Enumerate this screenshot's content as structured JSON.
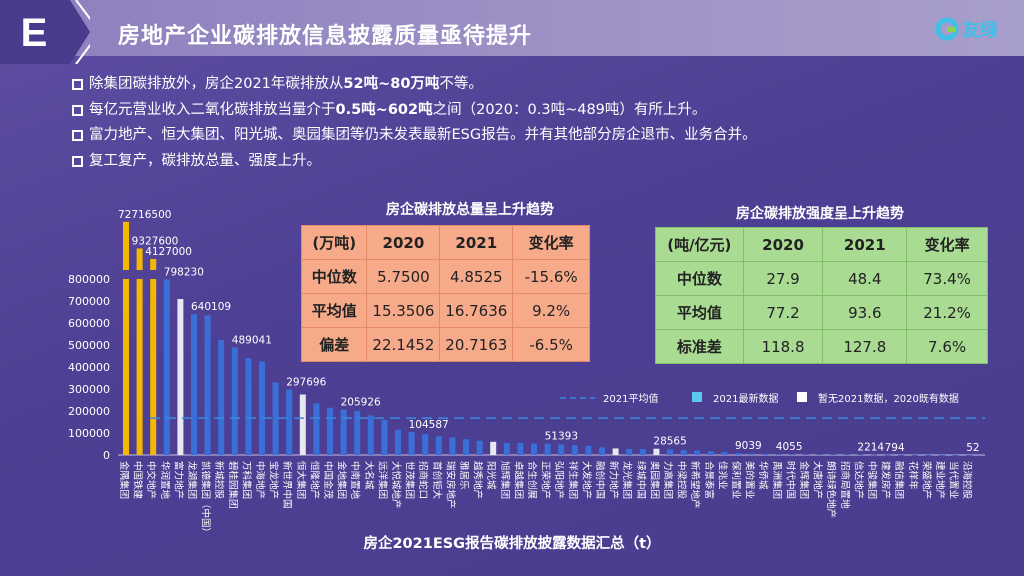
{
  "header": {
    "badge": "E",
    "title": "房地产企业碳排放信息披露质量亟待提升",
    "logo_text": "友绿"
  },
  "bullets": [
    {
      "pre": "除集团碳排放外，房企2021年碳排放从",
      "bold": "52吨~80万吨",
      "post": "不等。"
    },
    {
      "pre": "每亿元营业收入二氧化碳排放当量介于",
      "bold": "0.5吨~602吨",
      "post": "之间（2020：0.3吨~489吨）有所上升。"
    },
    {
      "pre": "富力地产、恒大集团、阳光城、奥园集团等仍未发表最新ESG报告。并有其他部分房企退市、业务合并。",
      "bold": "",
      "post": ""
    },
    {
      "pre": "复工复产，碳排放总量、强度上升。",
      "bold": "",
      "post": ""
    }
  ],
  "table_total": {
    "title": "房企碳排放总量呈上升趋势",
    "header": [
      "(万吨)",
      "2020",
      "2021",
      "变化率"
    ],
    "rows": [
      [
        "中位数",
        "5.7500",
        "4.8525",
        "-15.6%"
      ],
      [
        "平均值",
        "15.3506",
        "16.7636",
        "9.2%"
      ],
      [
        "偏差",
        "22.1452",
        "20.7163",
        "-6.5%"
      ]
    ]
  },
  "table_intensity": {
    "title": "房企碳排放强度呈上升趋势",
    "header": [
      "(吨/亿元)",
      "2020",
      "2021",
      "变化率"
    ],
    "rows": [
      [
        "中位数",
        "27.9",
        "48.4",
        "73.4%"
      ],
      [
        "平均值",
        "77.2",
        "93.6",
        "21.2%"
      ],
      [
        "标准差",
        "118.8",
        "127.8",
        "7.6%"
      ]
    ]
  },
  "chart_data": {
    "type": "bar",
    "title": "房企2021ESG报告碳排放披露数据汇总（t）",
    "ylim": [
      0,
      800000
    ],
    "yticks": [
      0,
      100000,
      200000,
      300000,
      400000,
      500000,
      600000,
      700000,
      800000
    ],
    "axis_break": true,
    "categories": [
      "金隅集团",
      "中国铁建",
      "中交地产",
      "华润置地",
      "富力地产",
      "龙湖集团",
      "凯德集团（中国）",
      "新城控股",
      "碧桂园集团",
      "万科集团",
      "中海地产",
      "宝龙地产",
      "新世界中国",
      "恒大集团",
      "恒隆地产",
      "中国金茂",
      "金地集团",
      "中南置地",
      "大名城",
      "远洋集团",
      "大悦城地产",
      "世茂集团",
      "招商蛇口",
      "首创钜大",
      "瑞安房地产",
      "雅居乐",
      "越秀地产",
      "阳光城",
      "旭辉集团",
      "卓越集团",
      "合生创展",
      "正荣地产",
      "弘阳地产",
      "祥生集团",
      "大发地产",
      "融创中国",
      "新力地产",
      "龙光集团",
      "绿城中国",
      "奥园集团",
      "力高集团",
      "中梁控股",
      "新希望地产",
      "合景泰富",
      "佳兆业",
      "保利置业",
      "美的置业",
      "华侨城",
      "禹洲集团",
      "时代中国",
      "金辉集团",
      "大唐地产",
      "朗诗绿色地产",
      "招商局置地",
      "信达地产",
      "中骏集团",
      "建发房产",
      "融信集团",
      "花样年",
      "荣盛地产",
      "建业地产",
      "当代置业",
      "沿海控股"
    ],
    "values": [
      72716500,
      9327600,
      4127000,
      798230,
      709000,
      640109,
      635000,
      523000,
      489041,
      440000,
      425000,
      330000,
      297696,
      275000,
      235000,
      215000,
      205926,
      200000,
      180000,
      160000,
      115000,
      104587,
      95000,
      85000,
      80000,
      72000,
      65000,
      60000,
      55000,
      55000,
      52000,
      51393,
      48000,
      45000,
      42000,
      35000,
      30000,
      28000,
      27000,
      28565,
      25000,
      22000,
      20000,
      17000,
      14000,
      9039,
      7000,
      5500,
      4055,
      3500,
      3200,
      3000,
      2800,
      2500,
      2214,
      1500,
      794,
      600,
      500,
      400,
      300,
      200,
      52
    ],
    "labeled_indices": [
      0,
      1,
      2,
      3,
      5,
      8,
      12,
      16,
      21,
      31,
      39,
      45,
      48,
      54,
      56,
      62
    ],
    "series_type": [
      "group",
      "group",
      "group",
      "2021",
      "2020only",
      "2021",
      "2021",
      "2021",
      "2021",
      "2021",
      "2021",
      "2021",
      "2021",
      "2020only",
      "2021",
      "2021",
      "2021",
      "2021",
      "2021",
      "2021",
      "2021",
      "2021",
      "2021",
      "2021",
      "2021",
      "2021",
      "2021",
      "2020only",
      "2021",
      "2021",
      "2021",
      "2021",
      "2021",
      "2021",
      "2021",
      "2021",
      "2020only",
      "2021",
      "2021",
      "2020only",
      "2021",
      "2021",
      "2021",
      "2021",
      "2021",
      "2021",
      "2021",
      "2021",
      "2021",
      "2021",
      "2021",
      "2021",
      "2021",
      "2021",
      "2021",
      "2021",
      "2021",
      "2021",
      "2021",
      "2021",
      "2021",
      "2021",
      "2021"
    ],
    "average_2021": 167636,
    "legend": [
      {
        "label": "2021平均值",
        "kind": "dashed-line"
      },
      {
        "label": "2021最新数据",
        "kind": "square"
      },
      {
        "label": "暂无2021数据，2020既有数据",
        "kind": "square"
      }
    ],
    "legend_position": "top-right",
    "colors": {
      "group": "#f5b800",
      "2021": "#3a6fd8",
      "2020only": "#e8e8f2",
      "avg": "#3a8be0",
      "legend_2021": "#5bc8f0"
    }
  }
}
